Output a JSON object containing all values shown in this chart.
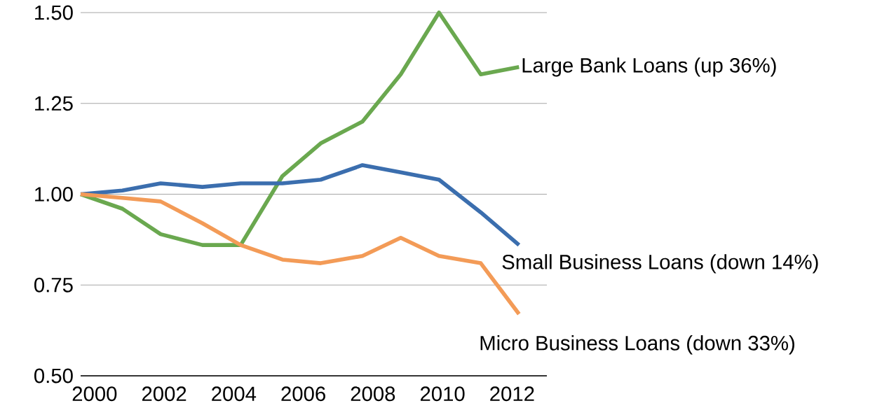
{
  "chart_data": {
    "type": "line",
    "x": [
      1999.6,
      2000.8,
      2001.9,
      2003.1,
      2004.2,
      2005.4,
      2006.5,
      2007.7,
      2008.8,
      2009.9,
      2011.1,
      2012.2
    ],
    "series": [
      {
        "name": "Large Bank Loans (up 36%)",
        "color": "#6aa84f",
        "values": [
          1.0,
          0.96,
          0.89,
          0.86,
          0.86,
          1.05,
          1.14,
          1.2,
          1.33,
          1.5,
          1.33,
          1.35
        ]
      },
      {
        "name": "Small Business Loans (down 14%)",
        "color": "#3b6eae",
        "values": [
          1.0,
          1.01,
          1.03,
          1.02,
          1.03,
          1.03,
          1.04,
          1.08,
          1.06,
          1.04,
          0.95,
          0.86
        ]
      },
      {
        "name": "Micro Business Loans (down 33%)",
        "color": "#f39b57",
        "values": [
          1.0,
          0.99,
          0.98,
          0.92,
          0.86,
          0.82,
          0.81,
          0.83,
          0.88,
          0.83,
          0.81,
          0.67
        ]
      }
    ],
    "xlim": [
      1999.6,
      2013.0
    ],
    "ylim": [
      0.5,
      1.5
    ],
    "xticks": [
      2000,
      2002,
      2004,
      2006,
      2008,
      2010,
      2012
    ],
    "yticks": [
      {
        "value": 0.5,
        "label": "0.50"
      },
      {
        "value": 0.75,
        "label": "0.75"
      },
      {
        "value": 1.0,
        "label": "1.00"
      },
      {
        "value": 1.25,
        "label": "1.25"
      },
      {
        "value": 1.5,
        "label": "1.50"
      }
    ],
    "grid": "y",
    "marker": "none",
    "line_style": "solid"
  }
}
